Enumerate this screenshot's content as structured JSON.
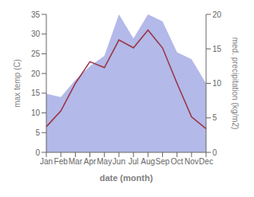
{
  "chart_data": {
    "type": "area+line",
    "categories": [
      "Jan",
      "Feb",
      "Mar",
      "Apr",
      "May",
      "Jun",
      "Jul",
      "Aug",
      "Sep",
      "Oct",
      "Nov",
      "Dec"
    ],
    "series": [
      {
        "type": "area",
        "color": "#b3b9e8",
        "axis": "y2",
        "values": [
          8.5,
          8.0,
          10.5,
          12.5,
          14.0,
          20.0,
          16.5,
          20.0,
          19.0,
          14.5,
          13.5,
          10.0
        ]
      },
      {
        "type": "line",
        "color": "#993344",
        "values": [
          6.5,
          10.5,
          17.5,
          23.0,
          21.5,
          28.5,
          26.5,
          31.0,
          26.5,
          17.5,
          9.0,
          6.0
        ]
      }
    ],
    "xlabel": "date (month)",
    "ylabel": "max temp (C)",
    "y2label": "med. precipitation (kg/m2)",
    "ylim": [
      0,
      35
    ],
    "yticks": [
      0,
      5,
      10,
      15,
      20,
      25,
      30,
      35
    ],
    "y2lim": [
      0,
      20
    ],
    "y2ticks": [
      0,
      5,
      10,
      15,
      20
    ],
    "grid": false
  }
}
